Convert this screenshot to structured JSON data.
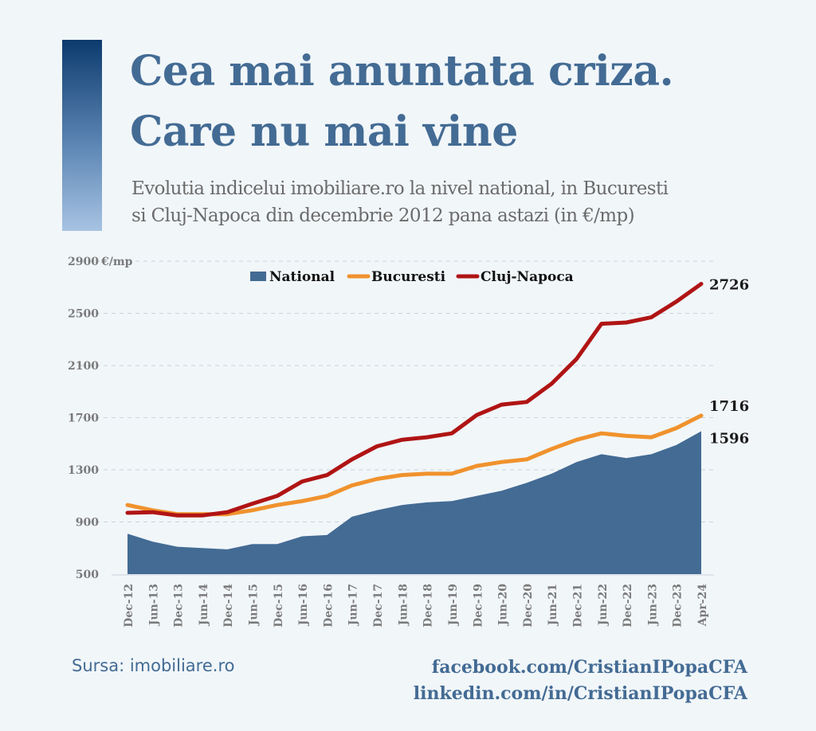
{
  "header": {
    "title_line1": "Cea mai anuntata criza.",
    "title_line2": "Care nu mai vine",
    "subtitle_line1": "Evolutia indicelui imobiliare.ro la nivel national, in Bucuresti",
    "subtitle_line2": "si Cluj-Napoca din decembrie 2012 pana astazi (in €/mp)"
  },
  "footer": {
    "source": "Sursa: imobiliare.ro",
    "facebook": "facebook.com/CristianIPopaCFA",
    "linkedin": "linkedin.com/in/CristianIPopaCFA"
  },
  "colors": {
    "national": "#436b94",
    "bucuresti": "#f0922d",
    "cluj": "#b01414",
    "title": "#436b94"
  },
  "chart_data": {
    "type": "area",
    "y_unit": "€/mp",
    "ylim": [
      500,
      2900
    ],
    "yticks": [
      500,
      900,
      1300,
      1700,
      2100,
      2500,
      2900
    ],
    "grid": true,
    "legend": "top",
    "categories": [
      "Dec-12",
      "Jun-13",
      "Dec-13",
      "Jun-14",
      "Dec-14",
      "Jun-15",
      "Dec-15",
      "Jun-16",
      "Dec-16",
      "Jun-17",
      "Dec-17",
      "Jun-18",
      "Dec-18",
      "Jun-19",
      "Dec-19",
      "Jun-20",
      "Dec-20",
      "Jun-21",
      "Dec-21",
      "Jun-22",
      "Dec-22",
      "Jun-23",
      "Dec-23",
      "Apr-24"
    ],
    "series": [
      {
        "name": "National",
        "type": "area",
        "color": "#436b94",
        "values": [
          810,
          750,
          710,
          700,
          690,
          730,
          730,
          790,
          800,
          940,
          990,
          1030,
          1050,
          1060,
          1100,
          1140,
          1200,
          1270,
          1360,
          1420,
          1390,
          1420,
          1490,
          1596
        ],
        "end_label": "1596"
      },
      {
        "name": "Bucuresti",
        "type": "line",
        "color": "#f0922d",
        "values": [
          1030,
          990,
          960,
          960,
          960,
          990,
          1030,
          1060,
          1100,
          1180,
          1230,
          1260,
          1270,
          1270,
          1330,
          1360,
          1380,
          1460,
          1530,
          1580,
          1560,
          1550,
          1620,
          1716
        ],
        "end_label": "1716"
      },
      {
        "name": "Cluj-Napoca",
        "type": "line",
        "color": "#b01414",
        "values": [
          970,
          975,
          950,
          950,
          975,
          1040,
          1100,
          1210,
          1260,
          1380,
          1480,
          1530,
          1550,
          1580,
          1720,
          1800,
          1820,
          1960,
          2150,
          2420,
          2430,
          2470,
          2590,
          2726
        ],
        "end_label": "2726"
      }
    ]
  }
}
